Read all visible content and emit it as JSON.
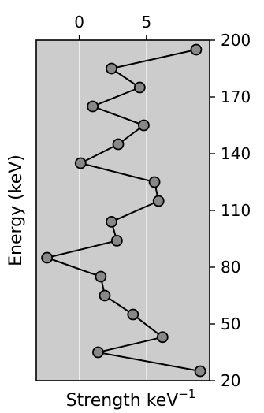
{
  "chart_data": {
    "type": "line",
    "title": "",
    "xlabel": "Strength keV",
    "xlabel_superscript": "−1",
    "ylabel": "Energy (keV)",
    "xlim": [
      -3.2,
      9.7
    ],
    "ylim": [
      20,
      200
    ],
    "xticks": [
      0,
      5
    ],
    "yticks": [
      20,
      50,
      80,
      110,
      140,
      170,
      200
    ],
    "x_axis_position": "top",
    "y_axis_position": "right",
    "grid": "vertical",
    "colors": {
      "plot_background": "#cccccc",
      "grid": "#eeeeee",
      "line": "#000000",
      "marker_fill": "#888888",
      "marker_edge": "#000000"
    },
    "series": [
      {
        "x": [
          9.0,
          1.4,
          6.2,
          4.0,
          1.9,
          1.6,
          -2.4,
          2.8,
          2.4,
          5.9,
          5.6,
          0.1,
          2.9,
          4.8,
          1.0,
          4.5,
          2.4,
          8.7
        ],
        "y": [
          25,
          35,
          43,
          55,
          65,
          75,
          85,
          94,
          104,
          115,
          125,
          135,
          145,
          155,
          165,
          175,
          185,
          195
        ]
      }
    ]
  }
}
